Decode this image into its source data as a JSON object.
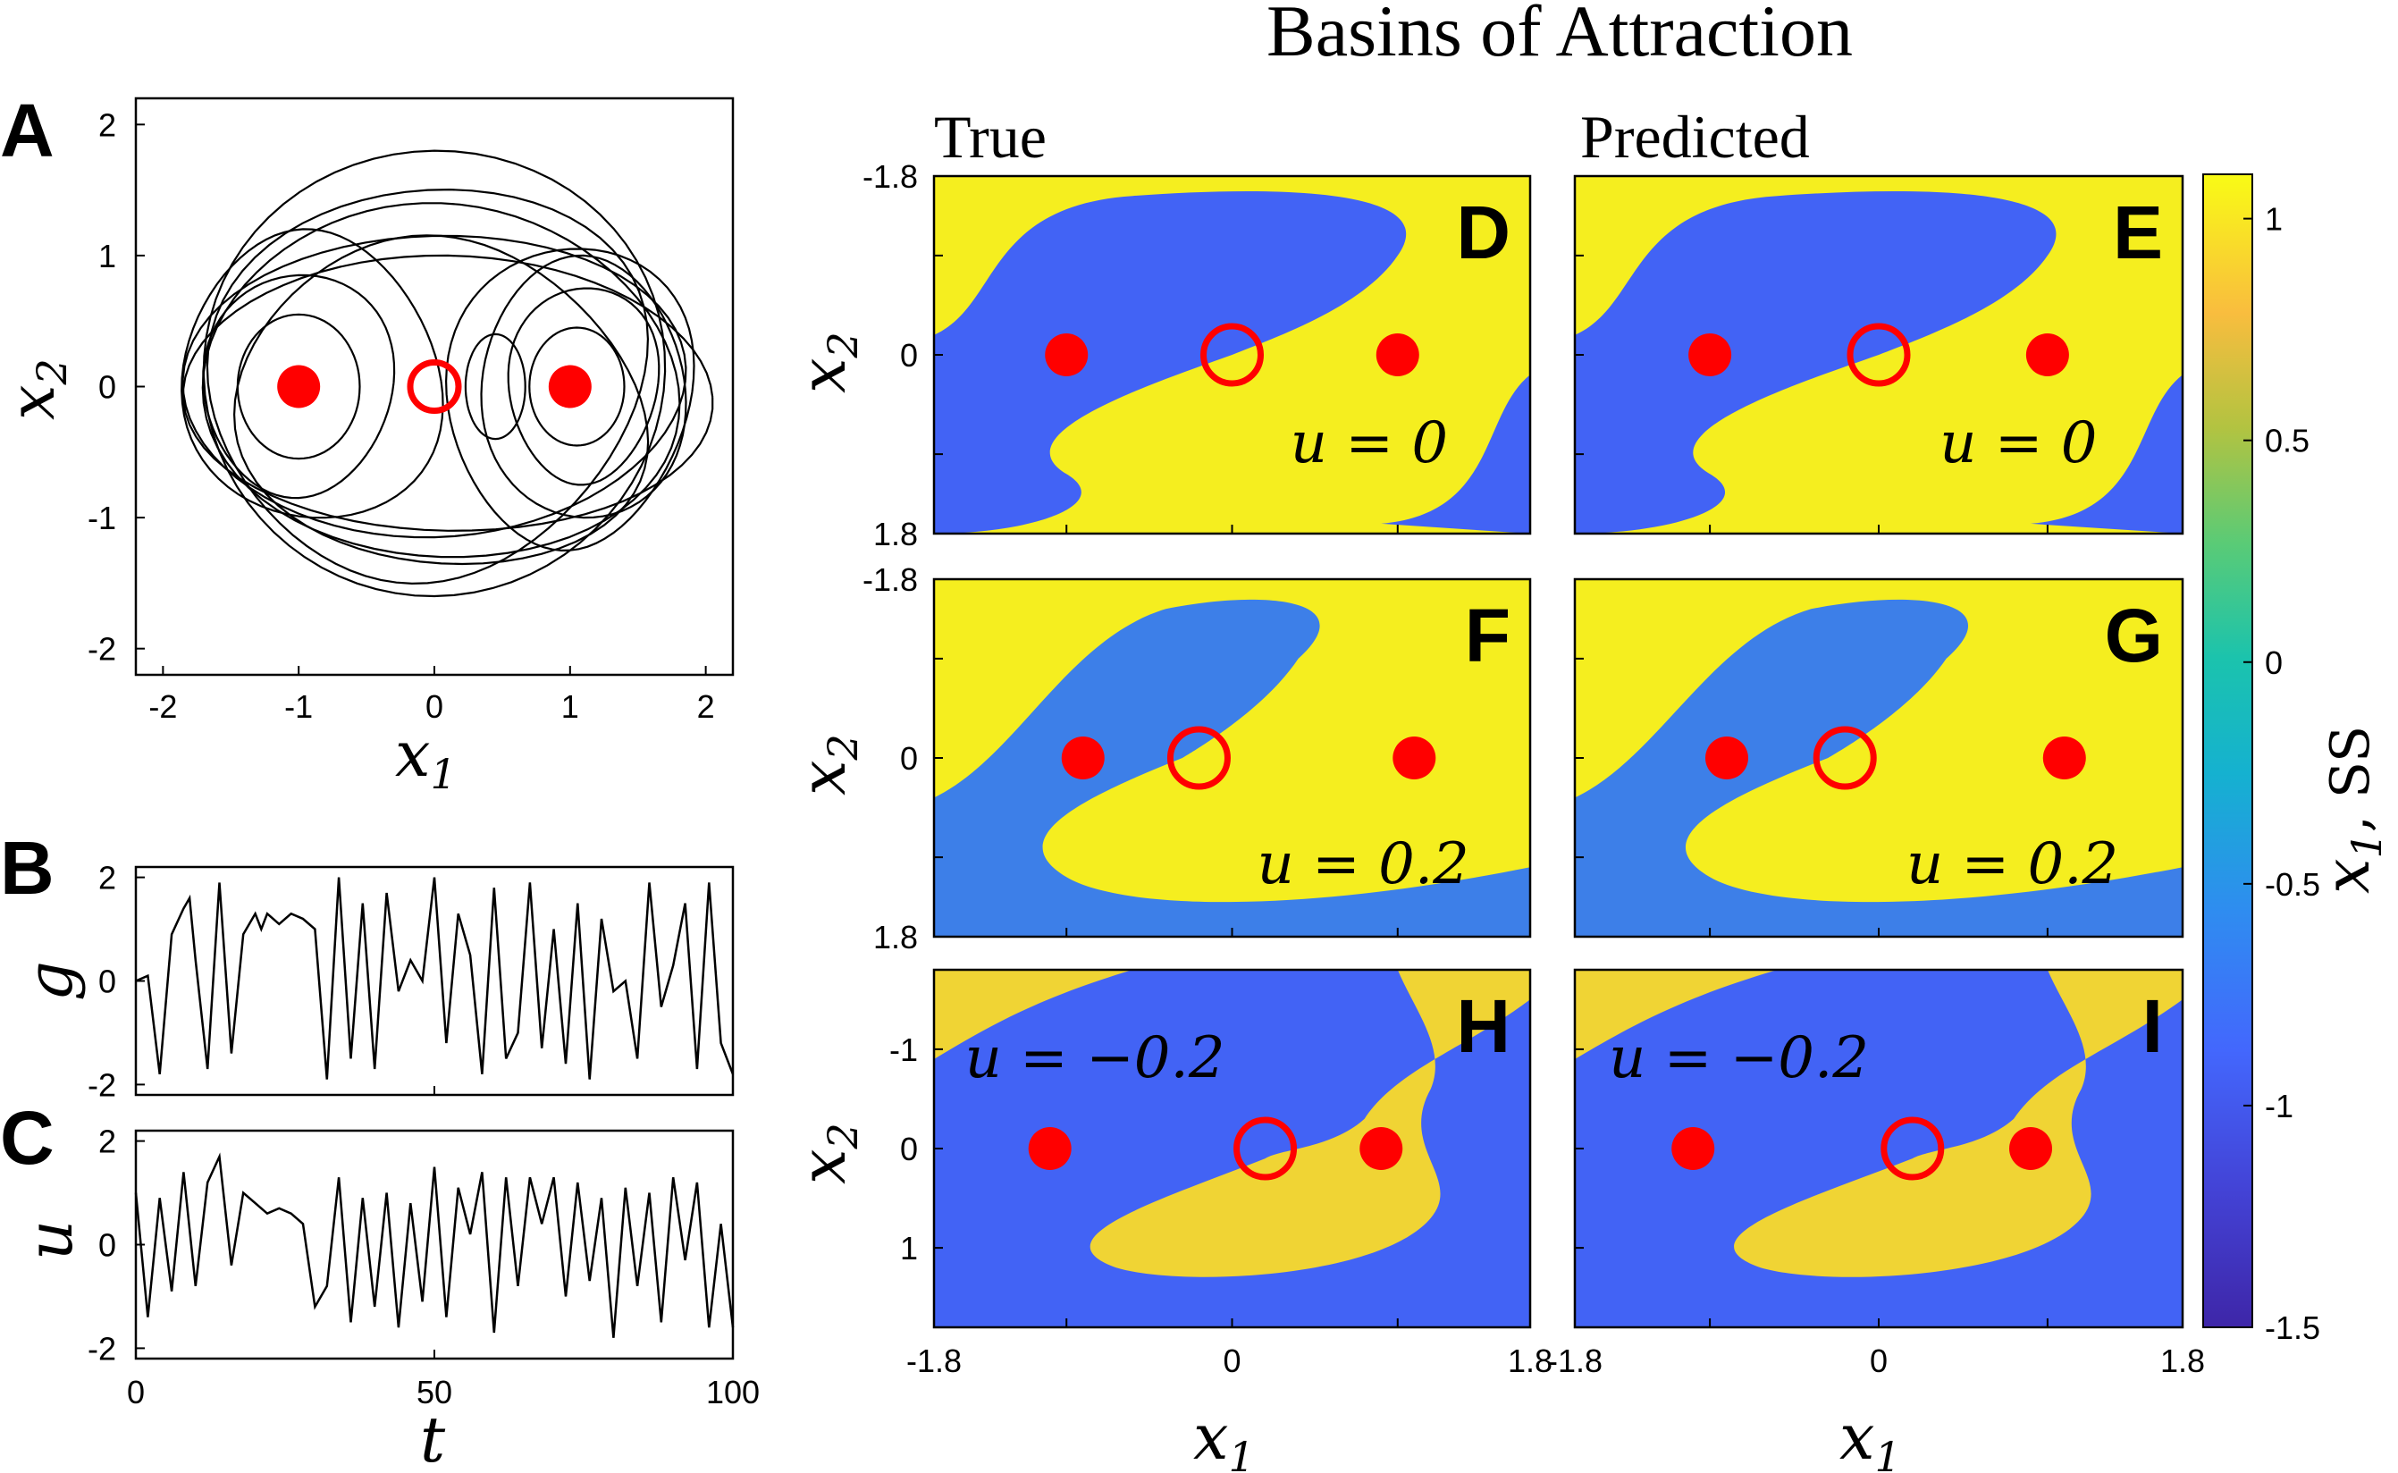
{
  "figure": {
    "title": "Basins of Attraction",
    "column_titles": [
      "True",
      "Predicted"
    ]
  },
  "chart_data": [
    {
      "panel": "A",
      "type": "line",
      "title": "",
      "xlabel": "x_1",
      "ylabel": "x_2",
      "xlim": [
        -2.2,
        2.2
      ],
      "ylim": [
        -2.2,
        2.2
      ],
      "xticks": [
        "-2",
        "-1",
        "0",
        "1",
        "2"
      ],
      "yticks": [
        "2",
        "1",
        "0",
        "-1",
        "-2"
      ],
      "fixed_points_stable": [
        [
          -1,
          0
        ],
        [
          1,
          0
        ]
      ],
      "fixed_points_unstable": [
        [
          0,
          0
        ]
      ],
      "description_series": "phase-space trajectory of forced double-well (Duffing) oscillator"
    },
    {
      "panel": "B",
      "type": "line",
      "ylabel": "g",
      "xlim": [
        0,
        100
      ],
      "ylim": [
        -2.2,
        2.2
      ],
      "yticks": [
        "2",
        "0",
        "-2"
      ],
      "x": [
        0,
        2,
        4,
        6,
        8,
        9,
        10,
        12,
        14,
        16,
        18,
        20,
        21,
        22,
        24,
        26,
        28,
        30,
        32,
        34,
        36,
        38,
        40,
        42,
        44,
        46,
        48,
        50,
        52,
        54,
        56,
        58,
        60,
        62,
        64,
        66,
        68,
        70,
        72,
        74,
        76,
        78,
        80,
        82,
        84,
        86,
        88,
        90,
        92,
        94,
        96,
        98,
        100
      ],
      "values": [
        0.0,
        0.1,
        -1.8,
        0.9,
        1.4,
        1.6,
        0.4,
        -1.7,
        1.9,
        -1.4,
        0.9,
        1.3,
        1.0,
        1.3,
        1.1,
        1.3,
        1.2,
        1.0,
        -1.9,
        2.0,
        -1.5,
        1.5,
        -1.7,
        1.7,
        -0.2,
        0.4,
        0.0,
        2.0,
        -1.2,
        1.3,
        0.5,
        -1.8,
        1.8,
        -1.5,
        -1.0,
        1.9,
        -1.3,
        1.0,
        -1.6,
        1.5,
        -1.9,
        1.2,
        -0.2,
        0.0,
        -1.5,
        1.9,
        -0.5,
        0.3,
        1.5,
        -1.7,
        1.9,
        -1.2,
        -1.8
      ]
    },
    {
      "panel": "C",
      "type": "line",
      "xlabel": "t",
      "ylabel": "u",
      "xlim": [
        0,
        100
      ],
      "ylim": [
        -2.2,
        2.2
      ],
      "xticks": [
        "0",
        "50",
        "100"
      ],
      "yticks": [
        "2",
        "0",
        "-2"
      ],
      "x": [
        0,
        2,
        4,
        6,
        8,
        10,
        12,
        14,
        16,
        18,
        20,
        22,
        24,
        26,
        28,
        30,
        32,
        34,
        36,
        38,
        40,
        42,
        44,
        46,
        48,
        50,
        52,
        54,
        56,
        58,
        60,
        62,
        64,
        66,
        68,
        70,
        72,
        74,
        76,
        78,
        80,
        82,
        84,
        86,
        88,
        90,
        92,
        94,
        96,
        98,
        100
      ],
      "values": [
        1.0,
        -1.4,
        0.9,
        -0.9,
        1.4,
        -0.8,
        1.2,
        1.7,
        -0.4,
        1.0,
        0.8,
        0.6,
        0.7,
        0.6,
        0.4,
        -1.2,
        -0.8,
        1.3,
        -1.5,
        0.9,
        -1.2,
        1.0,
        -1.6,
        0.8,
        -1.1,
        1.5,
        -1.4,
        1.1,
        0.2,
        1.4,
        -1.7,
        1.3,
        -0.8,
        1.3,
        0.4,
        1.3,
        -1.0,
        1.2,
        -0.7,
        0.9,
        -1.8,
        1.1,
        -0.8,
        1.0,
        -1.5,
        1.3,
        -0.3,
        1.2,
        -1.6,
        0.4,
        -1.6
      ]
    },
    {
      "panel": "D",
      "type": "heatmap",
      "column": "True",
      "u_label": "u = 0",
      "xlim": [
        -1.8,
        1.8
      ],
      "ylim": [
        -1.8,
        1.8
      ],
      "xticks": [
        "-1.8",
        "0",
        "1.8"
      ],
      "yticks": [
        "-1.8",
        "0",
        "1.8"
      ],
      "stable_points": [
        [
          -1,
          0
        ],
        [
          1,
          0
        ]
      ],
      "saddle": [
        0,
        0
      ]
    },
    {
      "panel": "E",
      "type": "heatmap",
      "column": "Predicted",
      "u_label": "u = 0",
      "xlim": [
        -1.8,
        1.8
      ],
      "ylim": [
        -1.8,
        1.8
      ],
      "stable_points": [
        [
          -1,
          0
        ],
        [
          1,
          0
        ]
      ],
      "saddle": [
        0,
        0
      ]
    },
    {
      "panel": "F",
      "type": "heatmap",
      "column": "True",
      "u_label": "u = 0.2",
      "xlim": [
        -1.8,
        1.8
      ],
      "ylim": [
        -1.8,
        1.8
      ],
      "xticks": [
        "-1.8",
        "0",
        "1.8"
      ],
      "yticks": [
        "-1.8",
        "0",
        "1.8"
      ],
      "stable_points": [
        [
          -0.9,
          0
        ],
        [
          1.1,
          0
        ]
      ],
      "saddle": [
        -0.2,
        0
      ]
    },
    {
      "panel": "G",
      "type": "heatmap",
      "column": "Predicted",
      "u_label": "u = 0.2",
      "xlim": [
        -1.8,
        1.8
      ],
      "ylim": [
        -1.8,
        1.8
      ],
      "stable_points": [
        [
          -0.9,
          0
        ],
        [
          1.1,
          0
        ]
      ],
      "saddle": [
        -0.2,
        0
      ]
    },
    {
      "panel": "H",
      "type": "heatmap",
      "column": "True",
      "u_label": "u = −0.2",
      "xlim": [
        -1.8,
        1.8
      ],
      "ylim": [
        -1.8,
        1.8
      ],
      "xticks": [
        "-1.8",
        "0",
        "1.8"
      ],
      "yticks": [
        "-1",
        "0",
        "1"
      ],
      "stable_points": [
        [
          -1.1,
          0
        ],
        [
          0.9,
          0
        ]
      ],
      "saddle": [
        0.2,
        0
      ]
    },
    {
      "panel": "I",
      "type": "heatmap",
      "column": "Predicted",
      "u_label": "u = −0.2",
      "xlim": [
        -1.8,
        1.8
      ],
      "ylim": [
        -1.8,
        1.8
      ],
      "xticks": [
        "-1.8",
        "0",
        "1.8"
      ],
      "stable_points": [
        [
          -1.1,
          0
        ],
        [
          0.9,
          0
        ]
      ],
      "saddle": [
        0.2,
        0
      ]
    }
  ],
  "heatmap_axes": {
    "xlabel": "x_1",
    "ylabel": "x_2"
  },
  "colorbar": {
    "label": "x_1, SS",
    "range": [
      -1.5,
      1.1
    ],
    "ticks": [
      "1",
      "0.5",
      "0",
      "-0.5",
      "-1",
      "-1.5"
    ]
  },
  "colors": {
    "basin_blue": "#4263f5",
    "basin_blue_light": "#3d7fe8",
    "basin_yellow": "#f5ee1f",
    "basin_gold": "#f0d434",
    "marker_red": "#ff0000"
  }
}
